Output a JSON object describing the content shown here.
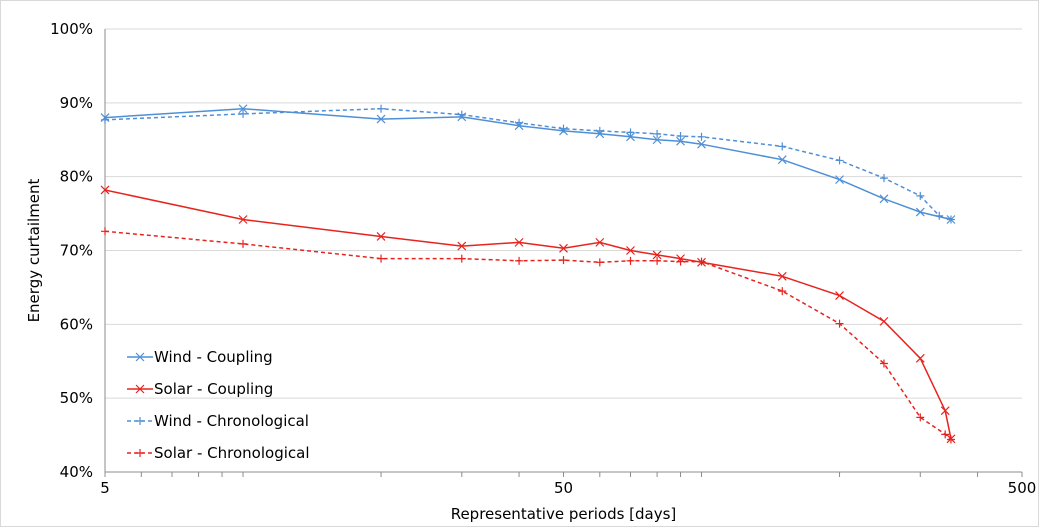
{
  "chart_data": {
    "type": "line",
    "xlabel": "Representative periods [days]",
    "ylabel": "Energy curtailment",
    "x_scale": "log",
    "xlim": [
      5,
      500
    ],
    "ylim": [
      40,
      100
    ],
    "x_ticks": [
      "5",
      "50",
      "500"
    ],
    "y_ticks": [
      "40%",
      "50%",
      "60%",
      "70%",
      "80%",
      "90%",
      "100%"
    ],
    "grid": "horizontal",
    "legend_position": "lower-left",
    "series": [
      {
        "name": "Wind - Coupling",
        "color": "#4f8fd6",
        "dash": "solid",
        "marker": "x",
        "x": [
          5,
          10,
          20,
          30,
          40,
          50,
          60,
          70,
          80,
          90,
          100,
          150,
          200,
          250,
          300,
          350
        ],
        "y": [
          88.0,
          89.2,
          87.8,
          88.1,
          86.9,
          86.2,
          85.8,
          85.4,
          85.0,
          84.8,
          84.4,
          82.3,
          79.6,
          77.0,
          75.2,
          74.2
        ]
      },
      {
        "name": "Solar - Coupling",
        "color": "#e8231e",
        "dash": "solid",
        "marker": "x",
        "x": [
          5,
          10,
          20,
          30,
          40,
          50,
          60,
          70,
          80,
          90,
          100,
          150,
          200,
          250,
          300,
          340,
          350
        ],
        "y": [
          78.2,
          74.2,
          71.9,
          70.6,
          71.1,
          70.3,
          71.1,
          70.0,
          69.4,
          68.9,
          68.4,
          66.5,
          63.9,
          60.4,
          55.4,
          48.3,
          44.5
        ]
      },
      {
        "name": "Wind - Chronological",
        "color": "#4f8fd6",
        "dash": "dashed",
        "marker": "+",
        "x": [
          5,
          10,
          20,
          30,
          40,
          50,
          60,
          70,
          80,
          90,
          100,
          150,
          200,
          250,
          300,
          330,
          350
        ],
        "y": [
          87.7,
          88.5,
          89.2,
          88.4,
          87.3,
          86.5,
          86.2,
          86.0,
          85.8,
          85.5,
          85.4,
          84.1,
          82.2,
          79.8,
          77.4,
          74.7,
          74.2
        ]
      },
      {
        "name": "Solar - Chronological",
        "color": "#e8231e",
        "dash": "dashed",
        "marker": "+",
        "x": [
          5,
          10,
          20,
          30,
          40,
          50,
          60,
          70,
          80,
          90,
          100,
          150,
          200,
          250,
          300,
          340,
          350
        ],
        "y": [
          72.6,
          70.9,
          68.9,
          68.9,
          68.6,
          68.7,
          68.4,
          68.6,
          68.6,
          68.5,
          68.5,
          64.5,
          60.1,
          54.7,
          47.4,
          45.1,
          44.4
        ]
      }
    ]
  }
}
